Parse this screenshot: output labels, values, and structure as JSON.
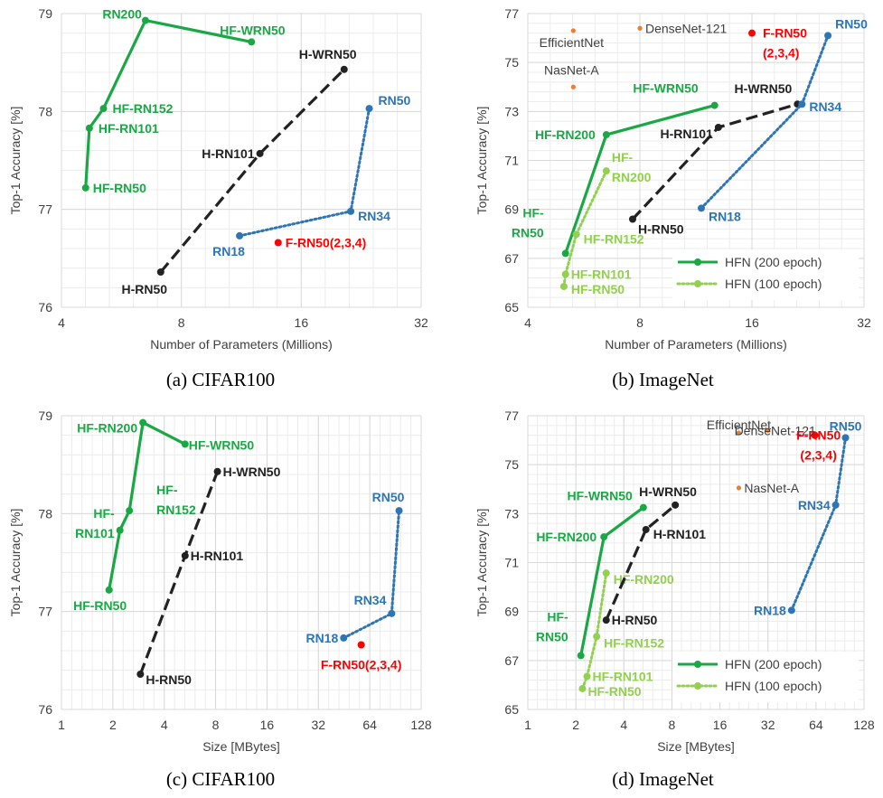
{
  "colors": {
    "hfn200": "#1aa845",
    "hfn100": "#92d050",
    "baseline": "#222222",
    "rn": "#2e75b6",
    "frn": "#ff0000",
    "other": "#ed7d31",
    "grid": "#d9d9d9",
    "axis_text": "#404040"
  },
  "chart_data": [
    {
      "id": "a",
      "type": "scatter",
      "caption": "(a) CIFAR100",
      "xlabel": "Number of Parameters (Millions)",
      "ylabel": "Top-1 Accuracy [%]",
      "xscale": "log2",
      "xlim": [
        4,
        32
      ],
      "xticks": [
        4,
        8,
        16,
        32
      ],
      "ylim": [
        76,
        79
      ],
      "yticks": [
        76,
        77,
        78,
        79
      ],
      "grid": true,
      "series": [
        {
          "key": "hfn200",
          "style": "solid",
          "points": [
            {
              "x": 4.6,
              "y": 77.22,
              "label": "HF-RN50"
            },
            {
              "x": 4.7,
              "y": 77.83,
              "label": "HF-RN101"
            },
            {
              "x": 5.1,
              "y": 78.03,
              "label": "HF-RN152"
            },
            {
              "x": 6.5,
              "y": 78.93,
              "label": "HF-\nRN200"
            },
            {
              "x": 12.0,
              "y": 78.71,
              "label": "HF-WRN50"
            }
          ]
        },
        {
          "key": "baseline",
          "style": "dashed",
          "points": [
            {
              "x": 7.1,
              "y": 76.36,
              "label": "H-RN50"
            },
            {
              "x": 12.6,
              "y": 77.57,
              "label": "H-RN101"
            },
            {
              "x": 20.5,
              "y": 78.43,
              "label": "H-WRN50"
            }
          ]
        },
        {
          "key": "rn",
          "style": "dotted",
          "points": [
            {
              "x": 11.2,
              "y": 76.73,
              "label": "RN18"
            },
            {
              "x": 21.3,
              "y": 76.98,
              "label": "RN34"
            },
            {
              "x": 23.7,
              "y": 78.03,
              "label": "RN50"
            }
          ]
        },
        {
          "key": "frn",
          "style": "point",
          "points": [
            {
              "x": 14.0,
              "y": 76.66,
              "label": "F-RN50(2,3,4)"
            }
          ]
        }
      ]
    },
    {
      "id": "b",
      "type": "scatter",
      "caption": "(b) ImageNet",
      "xlabel": "Number of Parameters (Millions)",
      "ylabel": "Top-1 Accuracy [%]",
      "xscale": "log2",
      "xlim": [
        4,
        32
      ],
      "xticks": [
        4,
        8,
        16,
        32
      ],
      "ylim": [
        65,
        77
      ],
      "yticks": [
        65,
        67,
        69,
        71,
        73,
        75,
        77
      ],
      "grid": true,
      "legend": {
        "position": "bottom-right",
        "entries": [
          {
            "key": "hfn200",
            "style": "solid",
            "label": "HFN (200 epoch)"
          },
          {
            "key": "hfn100",
            "style": "dotted",
            "label": "HFN (100 epoch)"
          }
        ]
      },
      "series": [
        {
          "key": "hfn200",
          "style": "solid",
          "points": [
            {
              "x": 5.05,
              "y": 67.2,
              "label": "HF-\nRN50"
            },
            {
              "x": 6.5,
              "y": 72.05,
              "label": "HF-RN200"
            },
            {
              "x": 12.7,
              "y": 73.25,
              "label": "HF-WRN50"
            }
          ]
        },
        {
          "key": "hfn100",
          "style": "dotted",
          "points": [
            {
              "x": 5.0,
              "y": 65.85,
              "label": "HF-RN50"
            },
            {
              "x": 5.05,
              "y": 66.35,
              "label": "HF-RN101"
            },
            {
              "x": 5.4,
              "y": 67.98,
              "label": "HF-RN152"
            },
            {
              "x": 6.5,
              "y": 70.57,
              "label": "HF-\nRN200"
            }
          ]
        },
        {
          "key": "baseline",
          "style": "dashed",
          "points": [
            {
              "x": 7.65,
              "y": 68.6,
              "label": "H-RN50"
            },
            {
              "x": 13.0,
              "y": 72.35,
              "label": "H-RN101"
            },
            {
              "x": 21.2,
              "y": 73.3,
              "label": "H-WRN50"
            }
          ]
        },
        {
          "key": "rn",
          "style": "dotted",
          "points": [
            {
              "x": 11.7,
              "y": 69.05,
              "label": "RN18"
            },
            {
              "x": 21.8,
              "y": 73.3,
              "label": "RN34"
            },
            {
              "x": 25.6,
              "y": 76.1,
              "label": "RN50"
            }
          ]
        },
        {
          "key": "frn",
          "style": "point",
          "points": [
            {
              "x": 16.0,
              "y": 76.2,
              "label": "F-RN50\n(2,3,4)"
            }
          ]
        },
        {
          "key": "other",
          "style": "point",
          "points": [
            {
              "x": 5.3,
              "y": 76.3,
              "label": "EfficientNet"
            },
            {
              "x": 8.0,
              "y": 76.4,
              "label": "DenseNet-121"
            },
            {
              "x": 5.3,
              "y": 74.0,
              "label": "NasNet-A"
            }
          ]
        }
      ]
    },
    {
      "id": "c",
      "type": "scatter",
      "caption": "(c) CIFAR100",
      "xlabel": "Size [MBytes]",
      "ylabel": "Top-1 Accuracy [%]",
      "xscale": "log2",
      "xlim": [
        1,
        128
      ],
      "xticks": [
        1,
        2,
        4,
        8,
        16,
        32,
        64,
        128
      ],
      "ylim": [
        76,
        79
      ],
      "yticks": [
        76,
        77,
        78,
        79
      ],
      "grid": true,
      "series": [
        {
          "key": "hfn200",
          "style": "solid",
          "points": [
            {
              "x": 1.9,
              "y": 77.22,
              "label": "HF-RN50"
            },
            {
              "x": 2.2,
              "y": 77.83,
              "label": "HF-\nRN101"
            },
            {
              "x": 2.5,
              "y": 78.03,
              "label": "HF-\nRN152"
            },
            {
              "x": 3.0,
              "y": 78.93,
              "label": "HF-RN200"
            },
            {
              "x": 5.3,
              "y": 78.71,
              "label": "HF-WRN50"
            }
          ]
        },
        {
          "key": "baseline",
          "style": "dashed",
          "points": [
            {
              "x": 2.9,
              "y": 76.36,
              "label": "H-RN50"
            },
            {
              "x": 5.3,
              "y": 77.57,
              "label": "H-RN101"
            },
            {
              "x": 8.2,
              "y": 78.43,
              "label": "H-WRN50"
            }
          ]
        },
        {
          "key": "rn",
          "style": "dotted",
          "points": [
            {
              "x": 45.0,
              "y": 76.73,
              "label": "RN18"
            },
            {
              "x": 86.0,
              "y": 76.98,
              "label": "RN34"
            },
            {
              "x": 95.0,
              "y": 78.03,
              "label": "RN50"
            }
          ]
        },
        {
          "key": "frn",
          "style": "point",
          "points": [
            {
              "x": 57.0,
              "y": 76.66,
              "label": "F-RN50(2,3,4)"
            }
          ]
        }
      ]
    },
    {
      "id": "d",
      "type": "scatter",
      "caption": "(d) ImageNet",
      "xlabel": "Size [MBytes]",
      "ylabel": "Top-1 Accuracy [%]",
      "xscale": "log2",
      "xlim": [
        1,
        128
      ],
      "xticks": [
        1,
        2,
        4,
        8,
        16,
        32,
        64,
        128
      ],
      "ylim": [
        65,
        77
      ],
      "yticks": [
        65,
        67,
        69,
        71,
        73,
        75,
        77
      ],
      "grid": true,
      "legend": {
        "position": "bottom-right",
        "entries": [
          {
            "key": "hfn200",
            "style": "solid",
            "label": "HFN (200 epoch)"
          },
          {
            "key": "hfn100",
            "style": "dotted",
            "label": "HFN (100 epoch)"
          }
        ]
      },
      "series": [
        {
          "key": "hfn200",
          "style": "solid",
          "points": [
            {
              "x": 2.15,
              "y": 67.2,
              "label": "HF-\nRN50"
            },
            {
              "x": 3.0,
              "y": 72.05,
              "label": "HF-RN200"
            },
            {
              "x": 5.3,
              "y": 73.25,
              "label": "HF-WRN50"
            }
          ]
        },
        {
          "key": "hfn100",
          "style": "dotted",
          "points": [
            {
              "x": 2.2,
              "y": 65.85,
              "label": "HF-RN50"
            },
            {
              "x": 2.35,
              "y": 66.35,
              "label": "HF-RN101"
            },
            {
              "x": 2.7,
              "y": 67.98,
              "label": "HF-RN152"
            },
            {
              "x": 3.1,
              "y": 70.57,
              "label": "HF-RN200"
            }
          ]
        },
        {
          "key": "baseline",
          "style": "dashed",
          "points": [
            {
              "x": 3.1,
              "y": 68.65,
              "label": "H-RN50"
            },
            {
              "x": 5.5,
              "y": 72.35,
              "label": "H-RN101"
            },
            {
              "x": 8.4,
              "y": 73.35,
              "label": "H-WRN50"
            }
          ]
        },
        {
          "key": "rn",
          "style": "dotted",
          "points": [
            {
              "x": 45.0,
              "y": 69.05,
              "label": "RN18"
            },
            {
              "x": 85.0,
              "y": 73.35,
              "label": "RN34"
            },
            {
              "x": 98.0,
              "y": 76.1,
              "label": "RN50"
            }
          ]
        },
        {
          "key": "frn",
          "style": "point",
          "points": [
            {
              "x": 63.0,
              "y": 76.2,
              "label": "F-RN50\n(2,3,4)"
            }
          ]
        },
        {
          "key": "other",
          "style": "point",
          "points": [
            {
              "x": 21.0,
              "y": 76.3,
              "label": "EfficientNet"
            },
            {
              "x": 32.0,
              "y": 76.4,
              "label": "DenseNet-121"
            },
            {
              "x": 21.0,
              "y": 74.05,
              "label": "NasNet-A"
            }
          ]
        }
      ]
    }
  ]
}
